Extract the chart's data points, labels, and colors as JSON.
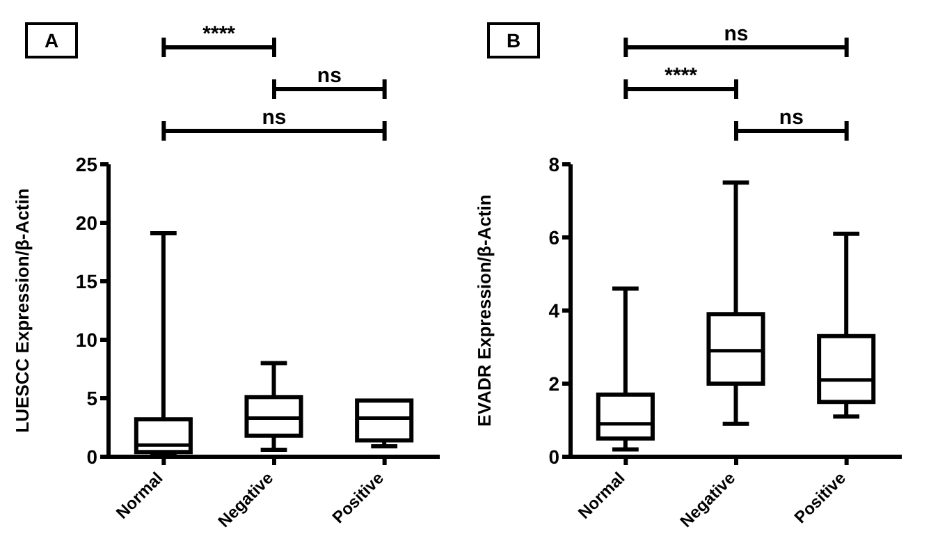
{
  "chart_data": [
    {
      "type": "box",
      "title": "A",
      "ylabel": "LUESCC Expression/β-Actin",
      "categories": [
        "Normal",
        "Negative",
        "Positive"
      ],
      "color": "#000000",
      "ylim": [
        0,
        25
      ],
      "yticks": [
        0,
        5,
        10,
        15,
        20,
        25
      ],
      "boxes": [
        {
          "low": 0.1,
          "q1": 0.4,
          "median": 1.0,
          "q3": 3.2,
          "high": 19.1
        },
        {
          "low": 0.6,
          "q1": 1.8,
          "median": 3.3,
          "q3": 5.1,
          "high": 8.0
        },
        {
          "low": 0.9,
          "q1": 1.4,
          "median": 3.3,
          "q3": 4.8,
          "high": 4.8
        }
      ],
      "annotations": [
        "****",
        "ns",
        "ns"
      ]
    },
    {
      "type": "box",
      "title": "B",
      "ylabel": "EVADR Expression/β-Actin",
      "categories": [
        "Normal",
        "Negative",
        "Positive"
      ],
      "color": "#000000",
      "ylim": [
        0,
        8
      ],
      "yticks": [
        0,
        2,
        4,
        6,
        8
      ],
      "boxes": [
        {
          "low": 0.2,
          "q1": 0.5,
          "median": 0.9,
          "q3": 1.7,
          "high": 4.6
        },
        {
          "low": 0.9,
          "q1": 2.0,
          "median": 2.9,
          "q3": 3.9,
          "high": 7.5
        },
        {
          "low": 1.1,
          "q1": 1.5,
          "median": 2.1,
          "q3": 3.3,
          "high": 6.1
        }
      ],
      "annotations": [
        "ns",
        "****",
        "ns"
      ]
    }
  ]
}
